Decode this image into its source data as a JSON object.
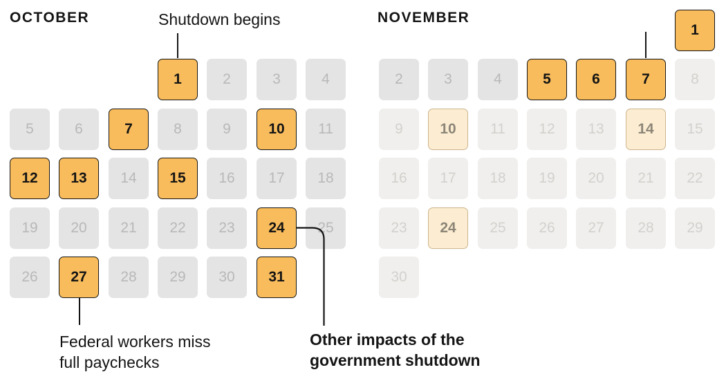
{
  "colors": {
    "highlight_fill": "#F8BC5C",
    "highlight_text": "#141414",
    "line_color": "#141414",
    "past_fill": "#E4E4E4",
    "past_text": "#B8B8B8",
    "future_fill": "#F0EFED",
    "future_text": "#D3D1CD",
    "cream_fill": "#FCEDD2",
    "cream_border": "#CBB48C",
    "cream_text": "#8C8577"
  },
  "annotations": {
    "shutdown_begins": "Shutdown begins",
    "federal_workers": "Federal workers miss\nfull paychecks",
    "other_impacts": "Other impacts of the\ngovernment shutdown"
  },
  "calendars": [
    {
      "id": "october",
      "title": "OCTOBER",
      "days": [
        {
          "day": 1,
          "row": 0,
          "col": 3,
          "state": "highlight"
        },
        {
          "day": 2,
          "row": 0,
          "col": 4,
          "state": "past"
        },
        {
          "day": 3,
          "row": 0,
          "col": 5,
          "state": "past"
        },
        {
          "day": 4,
          "row": 0,
          "col": 6,
          "state": "past"
        },
        {
          "day": 5,
          "row": 1,
          "col": 0,
          "state": "past"
        },
        {
          "day": 6,
          "row": 1,
          "col": 1,
          "state": "past"
        },
        {
          "day": 7,
          "row": 1,
          "col": 2,
          "state": "highlight"
        },
        {
          "day": 8,
          "row": 1,
          "col": 3,
          "state": "past"
        },
        {
          "day": 9,
          "row": 1,
          "col": 4,
          "state": "past"
        },
        {
          "day": 10,
          "row": 1,
          "col": 5,
          "state": "highlight"
        },
        {
          "day": 11,
          "row": 1,
          "col": 6,
          "state": "past"
        },
        {
          "day": 12,
          "row": 2,
          "col": 0,
          "state": "highlight"
        },
        {
          "day": 13,
          "row": 2,
          "col": 1,
          "state": "highlight"
        },
        {
          "day": 14,
          "row": 2,
          "col": 2,
          "state": "past"
        },
        {
          "day": 15,
          "row": 2,
          "col": 3,
          "state": "highlight"
        },
        {
          "day": 16,
          "row": 2,
          "col": 4,
          "state": "past"
        },
        {
          "day": 17,
          "row": 2,
          "col": 5,
          "state": "past"
        },
        {
          "day": 18,
          "row": 2,
          "col": 6,
          "state": "past"
        },
        {
          "day": 19,
          "row": 3,
          "col": 0,
          "state": "past"
        },
        {
          "day": 20,
          "row": 3,
          "col": 1,
          "state": "past"
        },
        {
          "day": 21,
          "row": 3,
          "col": 2,
          "state": "past"
        },
        {
          "day": 22,
          "row": 3,
          "col": 3,
          "state": "past"
        },
        {
          "day": 23,
          "row": 3,
          "col": 4,
          "state": "past"
        },
        {
          "day": 24,
          "row": 3,
          "col": 5,
          "state": "highlight"
        },
        {
          "day": 25,
          "row": 3,
          "col": 6,
          "state": "past"
        },
        {
          "day": 26,
          "row": 4,
          "col": 0,
          "state": "past"
        },
        {
          "day": 27,
          "row": 4,
          "col": 1,
          "state": "highlight"
        },
        {
          "day": 28,
          "row": 4,
          "col": 2,
          "state": "past"
        },
        {
          "day": 29,
          "row": 4,
          "col": 3,
          "state": "past"
        },
        {
          "day": 30,
          "row": 4,
          "col": 4,
          "state": "past"
        },
        {
          "day": 31,
          "row": 4,
          "col": 5,
          "state": "highlight"
        }
      ]
    },
    {
      "id": "november",
      "title": "NOVEMBER",
      "days": [
        {
          "day": 1,
          "row": 0,
          "col": 6,
          "state": "highlight"
        },
        {
          "day": 2,
          "row": 1,
          "col": 0,
          "state": "past"
        },
        {
          "day": 3,
          "row": 1,
          "col": 1,
          "state": "past"
        },
        {
          "day": 4,
          "row": 1,
          "col": 2,
          "state": "past"
        },
        {
          "day": 5,
          "row": 1,
          "col": 3,
          "state": "highlight"
        },
        {
          "day": 6,
          "row": 1,
          "col": 4,
          "state": "highlight"
        },
        {
          "day": 7,
          "row": 1,
          "col": 5,
          "state": "highlight"
        },
        {
          "day": 8,
          "row": 1,
          "col": 6,
          "state": "future"
        },
        {
          "day": 9,
          "row": 2,
          "col": 0,
          "state": "future"
        },
        {
          "day": 10,
          "row": 2,
          "col": 1,
          "state": "cream"
        },
        {
          "day": 11,
          "row": 2,
          "col": 2,
          "state": "future"
        },
        {
          "day": 12,
          "row": 2,
          "col": 3,
          "state": "future"
        },
        {
          "day": 13,
          "row": 2,
          "col": 4,
          "state": "future"
        },
        {
          "day": 14,
          "row": 2,
          "col": 5,
          "state": "cream"
        },
        {
          "day": 15,
          "row": 2,
          "col": 6,
          "state": "future"
        },
        {
          "day": 16,
          "row": 3,
          "col": 0,
          "state": "future"
        },
        {
          "day": 17,
          "row": 3,
          "col": 1,
          "state": "future"
        },
        {
          "day": 18,
          "row": 3,
          "col": 2,
          "state": "future"
        },
        {
          "day": 19,
          "row": 3,
          "col": 3,
          "state": "future"
        },
        {
          "day": 20,
          "row": 3,
          "col": 4,
          "state": "future"
        },
        {
          "day": 21,
          "row": 3,
          "col": 5,
          "state": "future"
        },
        {
          "day": 22,
          "row": 3,
          "col": 6,
          "state": "future"
        },
        {
          "day": 23,
          "row": 4,
          "col": 0,
          "state": "future"
        },
        {
          "day": 24,
          "row": 4,
          "col": 1,
          "state": "cream"
        },
        {
          "day": 25,
          "row": 4,
          "col": 2,
          "state": "future"
        },
        {
          "day": 26,
          "row": 4,
          "col": 3,
          "state": "future"
        },
        {
          "day": 27,
          "row": 4,
          "col": 4,
          "state": "future"
        },
        {
          "day": 28,
          "row": 4,
          "col": 5,
          "state": "future"
        },
        {
          "day": 29,
          "row": 4,
          "col": 6,
          "state": "future"
        },
        {
          "day": 30,
          "row": 5,
          "col": 0,
          "state": "future"
        }
      ]
    }
  ],
  "chart_data": {
    "type": "heatmap",
    "title": "Government shutdown calendar, October–November",
    "months": [
      {
        "name": "OCTOBER",
        "impact_days_highlighted": [
          1,
          7,
          10,
          12,
          13,
          15,
          24,
          27,
          31
        ],
        "other_days": [
          2,
          3,
          4,
          5,
          6,
          8,
          9,
          11,
          14,
          16,
          17,
          18,
          19,
          20,
          21,
          22,
          23,
          25,
          26,
          28,
          29,
          30
        ]
      },
      {
        "name": "NOVEMBER",
        "impact_days_highlighted": [
          1,
          5,
          6,
          7
        ],
        "upcoming_impact_days_cream": [
          10,
          14,
          24
        ],
        "other_days": [
          2,
          3,
          4,
          8,
          9,
          11,
          12,
          13,
          15,
          16,
          17,
          18,
          19,
          20,
          21,
          22,
          23,
          25,
          26,
          27,
          28,
          29,
          30
        ]
      }
    ],
    "annotations": [
      {
        "text": "Shutdown begins",
        "points_to": "October 1"
      },
      {
        "text": "Federal workers miss full paychecks",
        "points_to": "October 27"
      },
      {
        "text": "Other impacts of the government shutdown",
        "points_to": "October 24"
      },
      {
        "text": "",
        "points_to": "November 7 (pointer line only)"
      }
    ],
    "legend_position": "none",
    "grid": "calendar weeks, 7 columns (Sun–Sat), no weekday labels"
  }
}
